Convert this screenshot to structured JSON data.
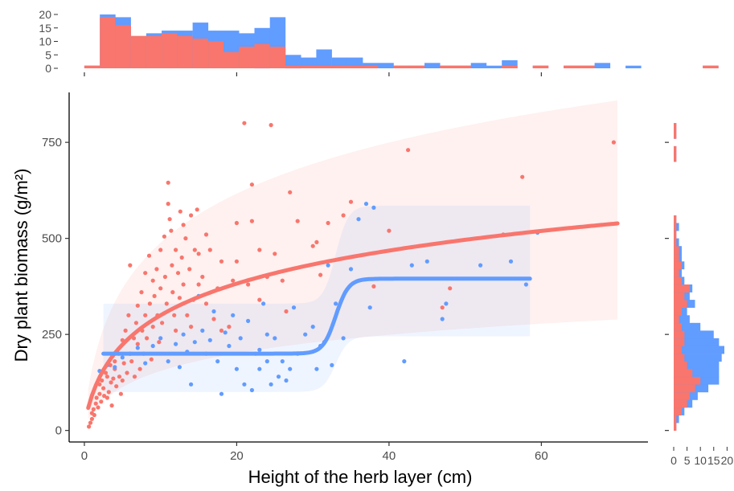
{
  "chart_data": [
    {
      "type": "scatter",
      "role": "main",
      "xlabel": "Height of the herb layer (cm)",
      "ylabel": "Dry plant biomass (g/m²)",
      "xlim": [
        -2,
        74
      ],
      "ylim": [
        -30,
        880
      ],
      "x_ticks": [
        0,
        20,
        40,
        60
      ],
      "y_ticks": [
        0,
        250,
        500,
        750
      ],
      "grid": false,
      "legend": "none",
      "colors": {
        "red": "#F8766D",
        "blue": "#619CFF"
      },
      "series": [
        {
          "color": "red",
          "points": [
            [
              0.6,
              10
            ],
            [
              0.8,
              20
            ],
            [
              1,
              30
            ],
            [
              1,
              45
            ],
            [
              1.2,
              55
            ],
            [
              1.3,
              40
            ],
            [
              1.5,
              70
            ],
            [
              1.6,
              85
            ],
            [
              1.8,
              60
            ],
            [
              2,
              95
            ],
            [
              2,
              120
            ],
            [
              2.2,
              75
            ],
            [
              2.3,
              130
            ],
            [
              2.5,
              110
            ],
            [
              2.6,
              90
            ],
            [
              2.8,
              150
            ],
            [
              3,
              140
            ],
            [
              3,
              85
            ],
            [
              3.2,
              100
            ],
            [
              3.4,
              170
            ],
            [
              3.5,
              125
            ],
            [
              3.6,
              65
            ],
            [
              3.8,
              135
            ],
            [
              4,
              160
            ],
            [
              4,
              180
            ],
            [
              4.2,
              115
            ],
            [
              4.5,
              200
            ],
            [
              4.6,
              140
            ],
            [
              4.8,
              95
            ],
            [
              5,
              130
            ],
            [
              5,
              235
            ],
            [
              5.2,
              175
            ],
            [
              5.4,
              260
            ],
            [
              5.6,
              150
            ],
            [
              5.8,
              300
            ],
            [
              6,
              430
            ],
            [
              6,
              200
            ],
            [
              6.2,
              180
            ],
            [
              6.5,
              240
            ],
            [
              6.6,
              140
            ],
            [
              6.8,
              280
            ],
            [
              7,
              325
            ],
            [
              7,
              225
            ],
            [
              7.3,
              160
            ],
            [
              7.5,
              360
            ],
            [
              7.6,
              260
            ],
            [
              7.8,
              200
            ],
            [
              8,
              410
            ],
            [
              8,
              300
            ],
            [
              8.2,
              240
            ],
            [
              8.5,
              455
            ],
            [
              8.6,
              330
            ],
            [
              8.8,
              185
            ],
            [
              9,
              270
            ],
            [
              9,
              390
            ],
            [
              9.2,
              350
            ],
            [
              9.5,
              420
            ],
            [
              9.6,
              300
            ],
            [
              9.8,
              230
            ],
            [
              10,
              370
            ],
            [
              10,
              470
            ],
            [
              10.2,
              280
            ],
            [
              10.5,
              505
            ],
            [
              10.6,
              400
            ],
            [
              10.8,
              330
            ],
            [
              11,
              645
            ],
            [
              11,
              590
            ],
            [
              11.2,
              550
            ],
            [
              11.4,
              520
            ],
            [
              11.5,
              430
            ],
            [
              11.6,
              360
            ],
            [
              11.8,
              300
            ],
            [
              12,
              470
            ],
            [
              12,
              260
            ],
            [
              12.3,
              410
            ],
            [
              12.5,
              345
            ],
            [
              12.6,
              570
            ],
            [
              12.8,
              450
            ],
            [
              13,
              535
            ],
            [
              13,
              380
            ],
            [
              13.3,
              500
            ],
            [
              13.5,
              300
            ],
            [
              13.8,
              420
            ],
            [
              14,
              560
            ],
            [
              14,
              270
            ],
            [
              14.3,
              340
            ],
            [
              14.5,
              470
            ],
            [
              14.8,
              575
            ],
            [
              15,
              380
            ],
            [
              15,
              460
            ],
            [
              15.5,
              400
            ],
            [
              16,
              510
            ],
            [
              16,
              330
            ],
            [
              16.5,
              470
            ],
            [
              17,
              290
            ],
            [
              17.5,
              370
            ],
            [
              18,
              440
            ],
            [
              18,
              260
            ],
            [
              19,
              270
            ],
            [
              19.5,
              390
            ],
            [
              20,
              540
            ],
            [
              20,
              440
            ],
            [
              21,
              800
            ],
            [
              21.5,
              380
            ],
            [
              22,
              545
            ],
            [
              22,
              640
            ],
            [
              23,
              470
            ],
            [
              23,
              340
            ],
            [
              24,
              400
            ],
            [
              24.5,
              795
            ],
            [
              25,
              460
            ],
            [
              26,
              390
            ],
            [
              26.5,
              310
            ],
            [
              27,
              620
            ],
            [
              28,
              545
            ],
            [
              30,
              480
            ],
            [
              30.5,
              490
            ],
            [
              31,
              405
            ],
            [
              32,
              540
            ],
            [
              34,
              560
            ],
            [
              35,
              595
            ],
            [
              38,
              375
            ],
            [
              40,
              520
            ],
            [
              42.5,
              730
            ],
            [
              47,
              320
            ],
            [
              48,
              370
            ],
            [
              55,
              510
            ],
            [
              57.5,
              660
            ],
            [
              69.5,
              750
            ]
          ]
        },
        {
          "color": "blue",
          "points": [
            [
              2,
              155
            ],
            [
              3,
              170
            ],
            [
              4,
              165
            ],
            [
              5,
              190
            ],
            [
              6,
              200
            ],
            [
              7,
              215
            ],
            [
              8,
              175
            ],
            [
              9,
              220
            ],
            [
              10,
              240
            ],
            [
              11,
              180
            ],
            [
              12,
              225
            ],
            [
              12.5,
              165
            ],
            [
              13,
              250
            ],
            [
              13.5,
              205
            ],
            [
              14,
              120
            ],
            [
              14.5,
              230
            ],
            [
              15,
              350
            ],
            [
              15.5,
              260
            ],
            [
              16,
              200
            ],
            [
              16.5,
              235
            ],
            [
              17,
              310
            ],
            [
              17.5,
              180
            ],
            [
              18,
              95
            ],
            [
              18.5,
              255
            ],
            [
              19,
              220
            ],
            [
              19.5,
              300
            ],
            [
              20,
              160
            ],
            [
              20.5,
              240
            ],
            [
              21,
              120
            ],
            [
              21.5,
              285
            ],
            [
              22,
              105
            ],
            [
              22.5,
              200
            ],
            [
              23,
              210
            ],
            [
              23,
              160
            ],
            [
              23.5,
              330
            ],
            [
              24,
              250
            ],
            [
              24,
              180
            ],
            [
              24.5,
              120
            ],
            [
              25,
              240
            ],
            [
              25.5,
              140
            ],
            [
              26,
              180
            ],
            [
              26.5,
              130
            ],
            [
              27,
              160
            ],
            [
              27.5,
              320
            ],
            [
              28,
              200
            ],
            [
              29,
              250
            ],
            [
              30,
              270
            ],
            [
              30.5,
              160
            ],
            [
              31,
              220
            ],
            [
              31.5,
              230
            ],
            [
              32,
              430
            ],
            [
              32.5,
              170
            ],
            [
              33,
              330
            ],
            [
              34,
              240
            ],
            [
              35,
              420
            ],
            [
              36,
              550
            ],
            [
              37,
              590
            ],
            [
              37.5,
              320
            ],
            [
              38,
              580
            ],
            [
              42,
              180
            ],
            [
              43,
              430
            ],
            [
              45,
              440
            ],
            [
              47,
              290
            ],
            [
              47.5,
              330
            ],
            [
              52,
              430
            ],
            [
              56,
              440
            ],
            [
              58,
              380
            ],
            [
              59.5,
              515
            ]
          ]
        }
      ],
      "fit_curves": [
        {
          "color": "red",
          "x_range": [
            0.5,
            70
          ],
          "kind": "log-like",
          "band_upper_at_end": 880,
          "band_lower_at_end": 305
        },
        {
          "color": "blue",
          "kind": "sigmoid-step",
          "x_range": [
            2.5,
            58.5
          ],
          "low": 200,
          "high": 395,
          "step_x": 33,
          "band_upper_low": 330,
          "band_lower_low": 100,
          "band_upper_high": 585,
          "band_lower_high": 245
        }
      ]
    },
    {
      "type": "bar",
      "role": "marginal-top",
      "ylim": [
        0,
        20
      ],
      "y_ticks": [
        0,
        5,
        10,
        15,
        20
      ],
      "x_ticks": [
        0,
        20,
        40,
        60
      ],
      "bin_start": 0,
      "bin_width": 2.03,
      "series": [
        {
          "color": "red",
          "values": [
            1,
            19,
            16,
            12,
            12,
            13,
            12,
            11,
            10,
            6,
            8,
            9,
            8,
            1,
            1,
            1,
            1,
            1,
            1,
            0,
            1,
            1,
            0,
            1,
            1,
            0,
            0,
            1,
            0,
            1,
            0,
            1,
            1,
            0,
            0,
            0,
            0,
            0,
            0,
            0,
            1,
            0
          ]
        },
        {
          "color": "blue",
          "values": [
            0,
            1,
            3,
            0,
            1,
            1,
            2,
            6,
            4,
            8,
            5,
            6,
            11,
            4,
            3,
            6,
            3,
            3,
            1,
            2,
            0,
            0,
            2,
            0,
            0,
            2,
            1,
            2,
            0,
            0,
            0,
            0,
            0,
            2,
            0,
            1,
            0,
            0,
            0,
            0,
            0,
            0
          ]
        }
      ]
    },
    {
      "type": "bar",
      "role": "marginal-right",
      "orientation": "horizontal",
      "xlim": [
        0,
        22
      ],
      "x_ticks": [
        0,
        5,
        10,
        15,
        20
      ],
      "x_tick_labels": [
        "0",
        "5",
        "10",
        "15",
        "20"
      ],
      "bin_start": 0,
      "bin_width": 20,
      "series": [
        {
          "color": "red",
          "values": [
            1,
            1,
            3,
            5,
            6,
            8,
            10,
            7,
            5,
            4,
            3,
            4,
            4,
            3,
            2,
            3,
            5,
            4,
            6,
            3,
            2,
            3,
            2,
            2,
            1,
            1,
            1,
            1,
            0,
            0,
            0,
            0,
            0,
            0,
            0,
            1,
            1,
            0,
            1,
            1
          ]
        },
        {
          "color": "blue",
          "values": [
            0,
            1,
            1,
            2,
            3,
            5,
            7,
            10,
            12,
            14,
            16,
            13,
            11,
            7,
            4,
            2,
            3,
            2,
            1,
            1,
            1,
            1,
            1,
            1,
            1,
            0,
            1,
            0,
            0,
            0,
            0,
            0,
            0,
            0,
            0,
            0,
            0,
            0,
            0,
            0
          ]
        }
      ]
    }
  ]
}
